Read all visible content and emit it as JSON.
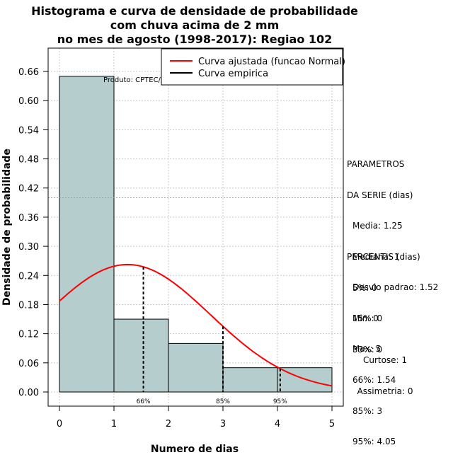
{
  "title_lines": [
    "Histograma e curva de densidade de probabilidade",
    "com chuva acima de 2 mm",
    "no mes de agosto (1998-2017): Regiao 102"
  ],
  "chart_data": {
    "type": "bar",
    "title": "Histograma e curva de densidade de probabilidade com chuva acima de 2 mm no mes de agosto (1998-2017): Regiao 102",
    "xlabel": "Numero de dias",
    "ylabel": "Densidade de probabilidade",
    "xlim": [
      -0.2,
      5.2
    ],
    "ylim": [
      0,
      0.7
    ],
    "x_ticks": [
      "0",
      "1",
      "2",
      "3",
      "4",
      "5"
    ],
    "y_ticks": [
      "0.00",
      "0.06",
      "0.12",
      "0.18",
      "0.24",
      "0.30",
      "0.36",
      "0.42",
      "0.48",
      "0.54",
      "0.60",
      "0.66"
    ],
    "bins": [
      {
        "from": 0,
        "to": 1,
        "density": 0.65
      },
      {
        "from": 1,
        "to": 2,
        "density": 0.15
      },
      {
        "from": 2,
        "to": 3,
        "density": 0.1
      },
      {
        "from": 3,
        "to": 4,
        "density": 0.05
      },
      {
        "from": 4,
        "to": 5,
        "density": 0.05
      }
    ],
    "fitted_curve": {
      "name": "Curva ajustada (funcao Normal)",
      "mean": 1.25,
      "sd": 1.52,
      "x_from": 0,
      "x_to": 5,
      "color": "#ff0000"
    },
    "empirical_curve": {
      "name": "Curva empirica",
      "color": "#000000"
    },
    "percentile_lines": [
      {
        "label": "66%",
        "x": 1.54
      },
      {
        "label": "85%",
        "x": 3
      },
      {
        "label": "95%",
        "x": 4.05
      }
    ],
    "horizontal_ref_line": 0.4,
    "bar_color": "#b5cdcd",
    "legend": {
      "position": "top-right",
      "entries": [
        {
          "label": "Curva ajustada (funcao Normal)",
          "color": "#ff0000"
        },
        {
          "label": "Curva empirica",
          "color": "#000000"
        }
      ]
    },
    "annotation": "Produto: CPTEC/INPE"
  },
  "parametros": {
    "heading1": "PARAMETROS",
    "heading2": "DA SERIE (dias)",
    "items": [
      "Media: 1.25",
      "Mediana: 1",
      "Desvio padrao: 1.52",
      "Min: 0",
      "Max: 5"
    ]
  },
  "percentis": {
    "heading": "PERCENTIS (dias)",
    "items": [
      "5%: 0",
      "15%: 0",
      "33%: 0",
      "66%: 1.54",
      "85%: 3",
      "95%: 4.05"
    ]
  },
  "shape": {
    "curtose": "Curtose: 1",
    "assimetria": "Assimetria: 0"
  }
}
